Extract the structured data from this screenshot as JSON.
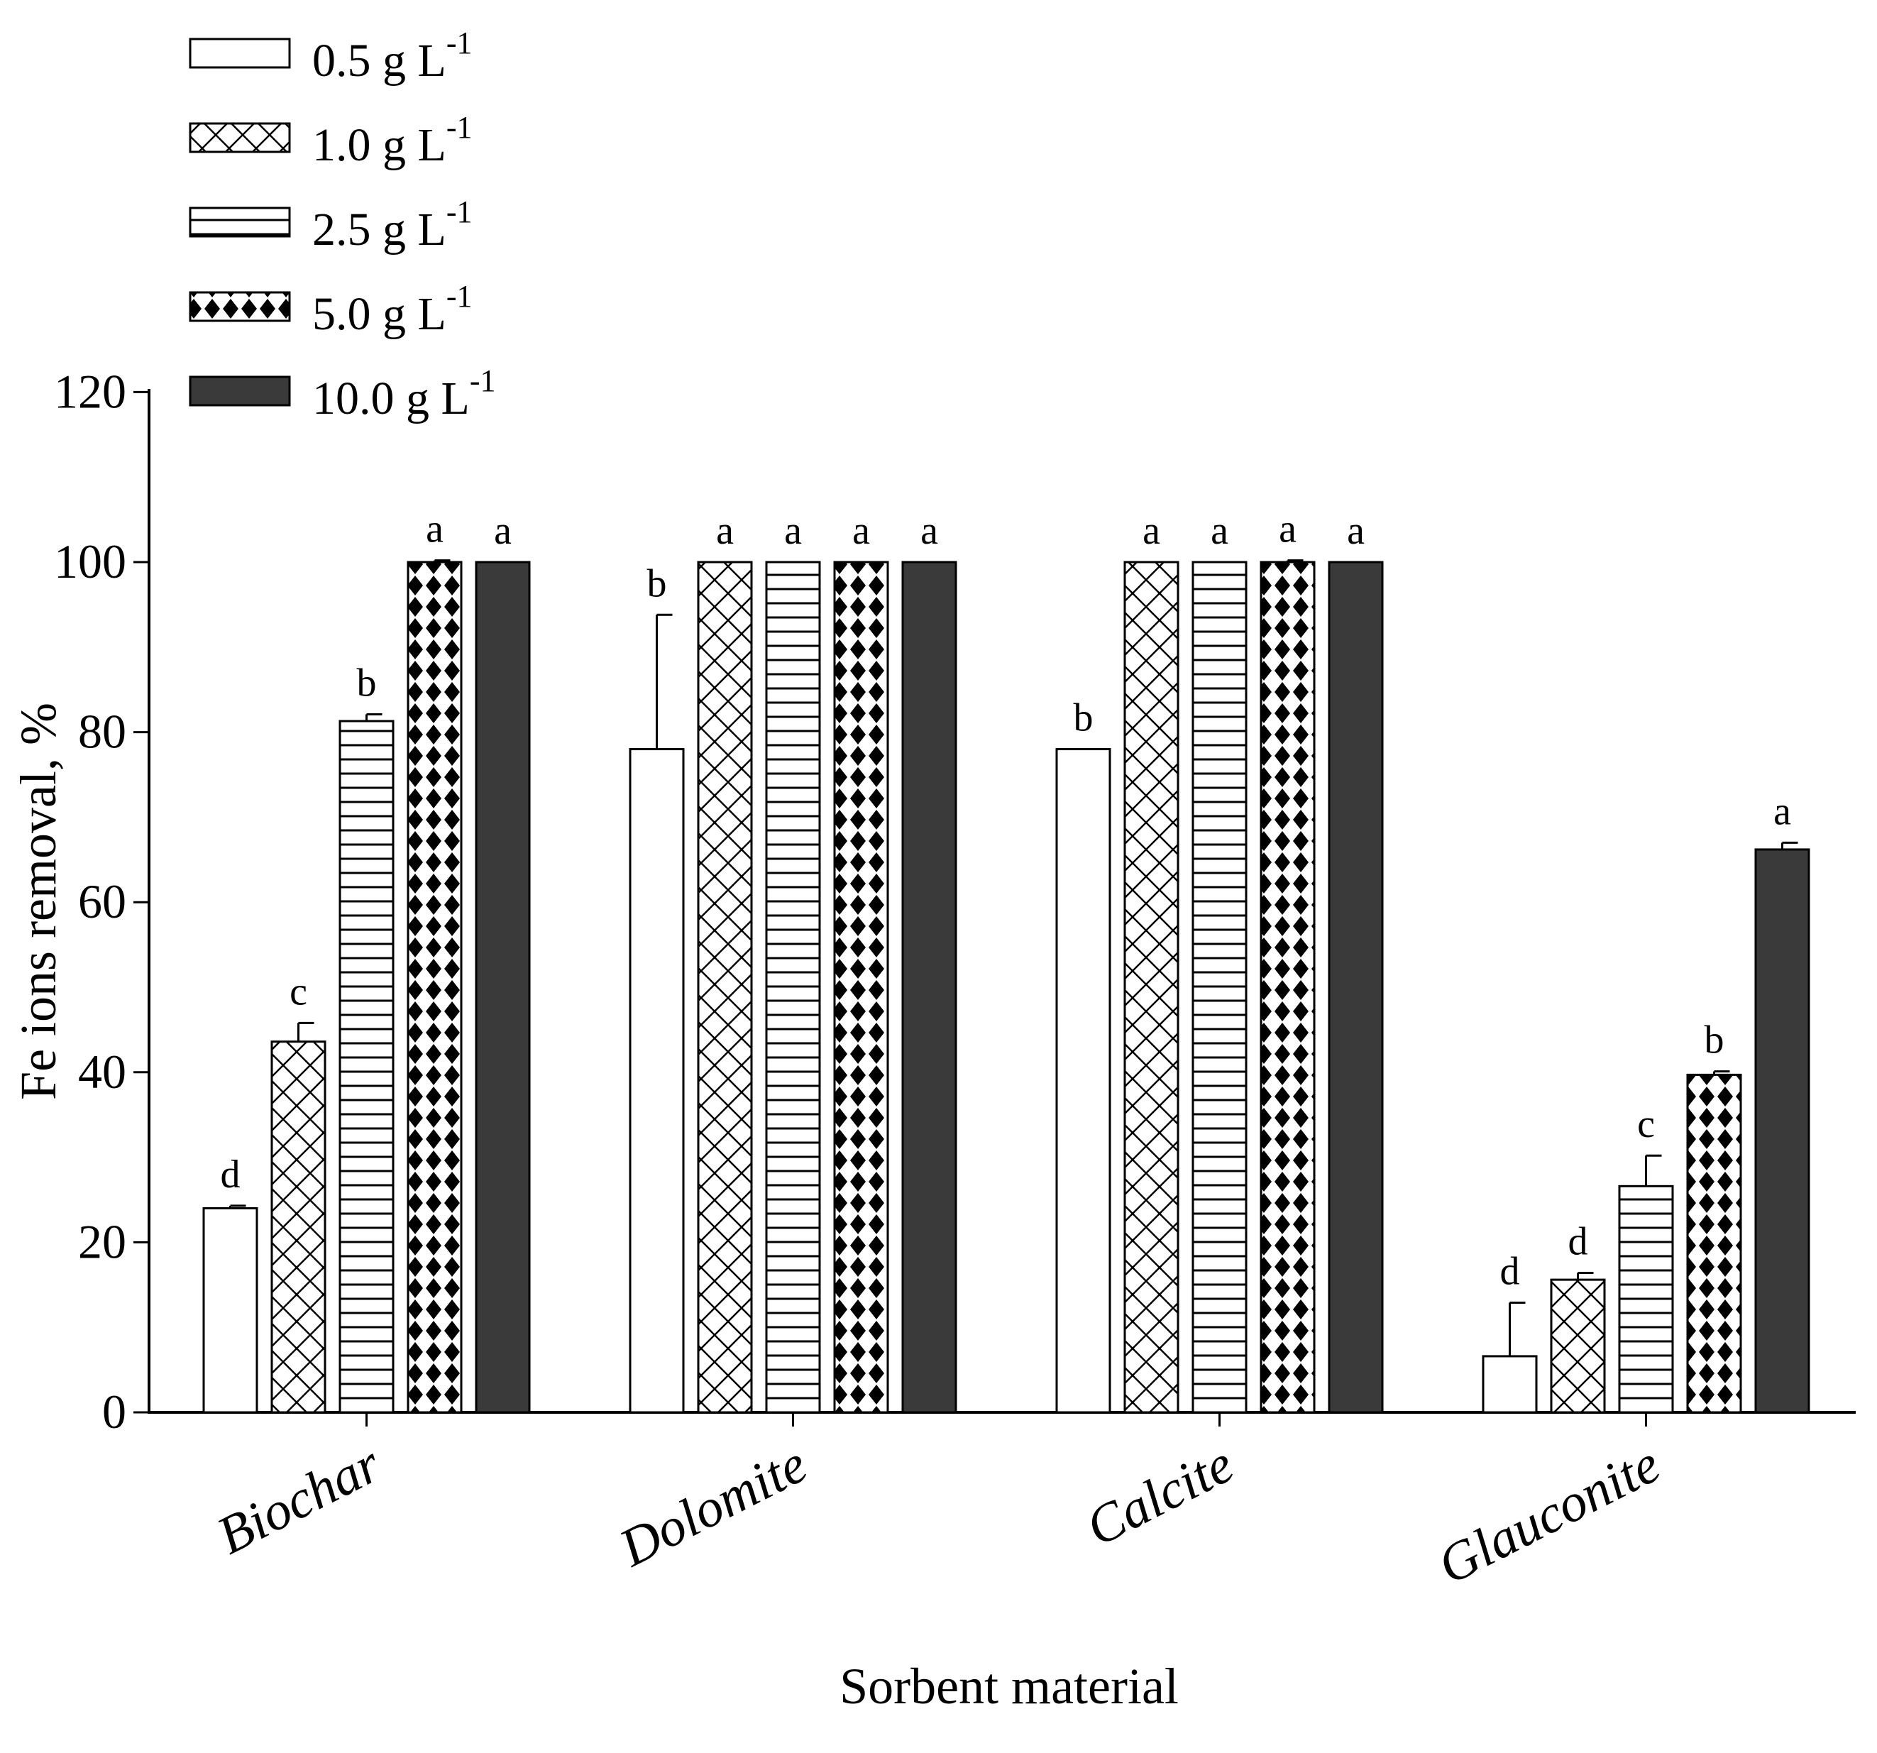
{
  "chart_data": {
    "type": "bar",
    "xlabel": "Sorbent material",
    "ylabel": "Fe ions removal, %",
    "ylim": [
      0,
      120
    ],
    "yticks": [
      0,
      20,
      40,
      60,
      80,
      100,
      120
    ],
    "grid": false,
    "legend_position": "top-left",
    "categories": [
      "Biochar",
      "Dolomite",
      "Calcite",
      "Glauconite"
    ],
    "series": [
      {
        "name": "0.5 g L-1",
        "label": "0.5 g L",
        "sup": "-1",
        "pattern": "empty",
        "values": [
          24,
          78,
          78,
          6.6
        ],
        "errors": [
          0.3,
          15.8,
          0,
          6.3
        ],
        "letters": [
          "d",
          "b",
          "b",
          "d"
        ]
      },
      {
        "name": "1.0 g L-1",
        "label": "1.0 g L",
        "sup": "-1",
        "pattern": "crosshatch",
        "values": [
          43.6,
          100,
          100,
          15.6
        ],
        "errors": [
          2.2,
          0,
          0,
          0.8
        ],
        "letters": [
          "c",
          "a",
          "a",
          "d"
        ]
      },
      {
        "name": "2.5 g L-1",
        "label": "2.5 g L",
        "sup": "-1",
        "pattern": "horizontal",
        "values": [
          81.3,
          100,
          100,
          26.6
        ],
        "errors": [
          0.8,
          0,
          0,
          3.6
        ],
        "letters": [
          "b",
          "a",
          "a",
          "c"
        ]
      },
      {
        "name": "5.0 g L-1",
        "label": "5.0 g L",
        "sup": "-1",
        "pattern": "diamonds",
        "values": [
          100,
          100,
          100,
          39.7
        ],
        "errors": [
          0.2,
          0,
          0.2,
          0.4
        ],
        "letters": [
          "a",
          "a",
          "a",
          "b"
        ]
      },
      {
        "name": "10.0 g L-1",
        "label": "10.0 g L",
        "sup": "-1",
        "pattern": "solid",
        "values": [
          100,
          100,
          100,
          66.2
        ],
        "errors": [
          0,
          0,
          0,
          0.8
        ],
        "letters": [
          "a",
          "a",
          "a",
          "a"
        ]
      }
    ],
    "colors": {
      "solid": "#3a3a3a",
      "ink": "#000000",
      "background": "#ffffff"
    }
  }
}
